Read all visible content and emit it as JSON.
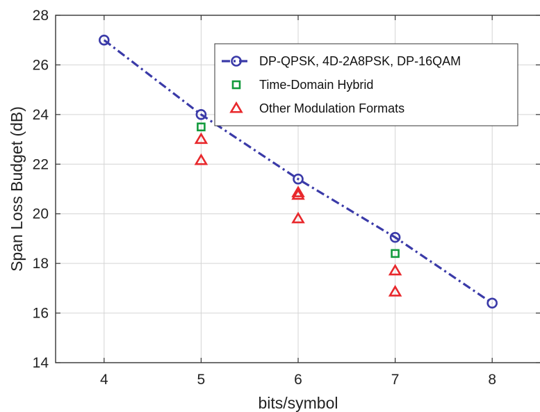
{
  "chart_data": {
    "type": "scatter",
    "title": "",
    "xlabel": "bits/symbol",
    "ylabel": "Span Loss Budget (dB)",
    "xlim": [
      3.5,
      8.5
    ],
    "ylim": [
      14,
      28
    ],
    "xticks": [
      4,
      5,
      6,
      7,
      8
    ],
    "yticks": [
      14,
      16,
      18,
      20,
      22,
      24,
      26,
      28
    ],
    "grid": true,
    "legend_position": "top-right",
    "series": [
      {
        "name": "DP-QPSK, 4D-2A8PSK, DP-16QAM",
        "marker": "circle",
        "line": "dash-dot",
        "color": "#3a3aa8",
        "x": [
          4,
          5,
          6,
          7,
          8
        ],
        "y": [
          27.0,
          24.0,
          21.4,
          19.05,
          16.4
        ]
      },
      {
        "name": "Time-Domain Hybrid",
        "marker": "square",
        "line": "none",
        "color": "#129a3c",
        "x": [
          5,
          7
        ],
        "y": [
          23.5,
          18.4
        ]
      },
      {
        "name": "Other Modulation Formats",
        "marker": "triangle",
        "line": "none",
        "color": "#e8282c",
        "x": [
          5,
          5,
          6,
          6,
          6,
          7,
          7
        ],
        "y": [
          23.0,
          22.15,
          20.85,
          20.75,
          19.8,
          17.7,
          16.85
        ]
      }
    ]
  }
}
